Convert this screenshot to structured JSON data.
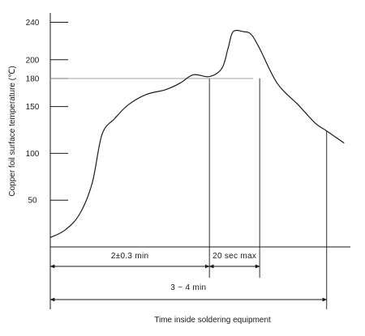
{
  "chart_data": {
    "type": "line",
    "title": "",
    "ylabel": "Copper foil surface temperature (℃)",
    "xlabel": "Time inside soldering equipment",
    "yticks": [
      "240",
      "200",
      "180",
      "150",
      "100",
      "50"
    ],
    "ytick_values": [
      240,
      200,
      180,
      150,
      100,
      50
    ],
    "reference_line_y": 180,
    "ylim": [
      0,
      250
    ],
    "xunit": "min",
    "xlim": [
      0,
      4.3
    ],
    "series": [
      {
        "x": [
          0,
          0.21,
          0.42,
          0.6,
          0.74,
          0.92,
          1.12,
          1.38,
          1.65,
          1.86,
          2.05,
          2.28,
          2.46,
          2.55,
          2.62,
          2.77,
          2.88,
          3.0,
          3.25,
          3.55,
          3.8,
          3.96,
          4.21
        ],
        "y": [
          10,
          18,
          35,
          68,
          120,
          137,
          152,
          163,
          168,
          175,
          184,
          182,
          191,
          213,
          230,
          230,
          227,
          212,
          175,
          152,
          132,
          124,
          111
        ]
      }
    ],
    "dimensions": [
      {
        "label": "2±0.3 min",
        "from": 0,
        "to": 2.28
      },
      {
        "label": "20 sec max",
        "from": 2.28,
        "to": 3.0
      },
      {
        "label": "3 ~ 4 min",
        "from": 0,
        "to": 3.96
      }
    ],
    "grid": false,
    "legend": "none"
  }
}
